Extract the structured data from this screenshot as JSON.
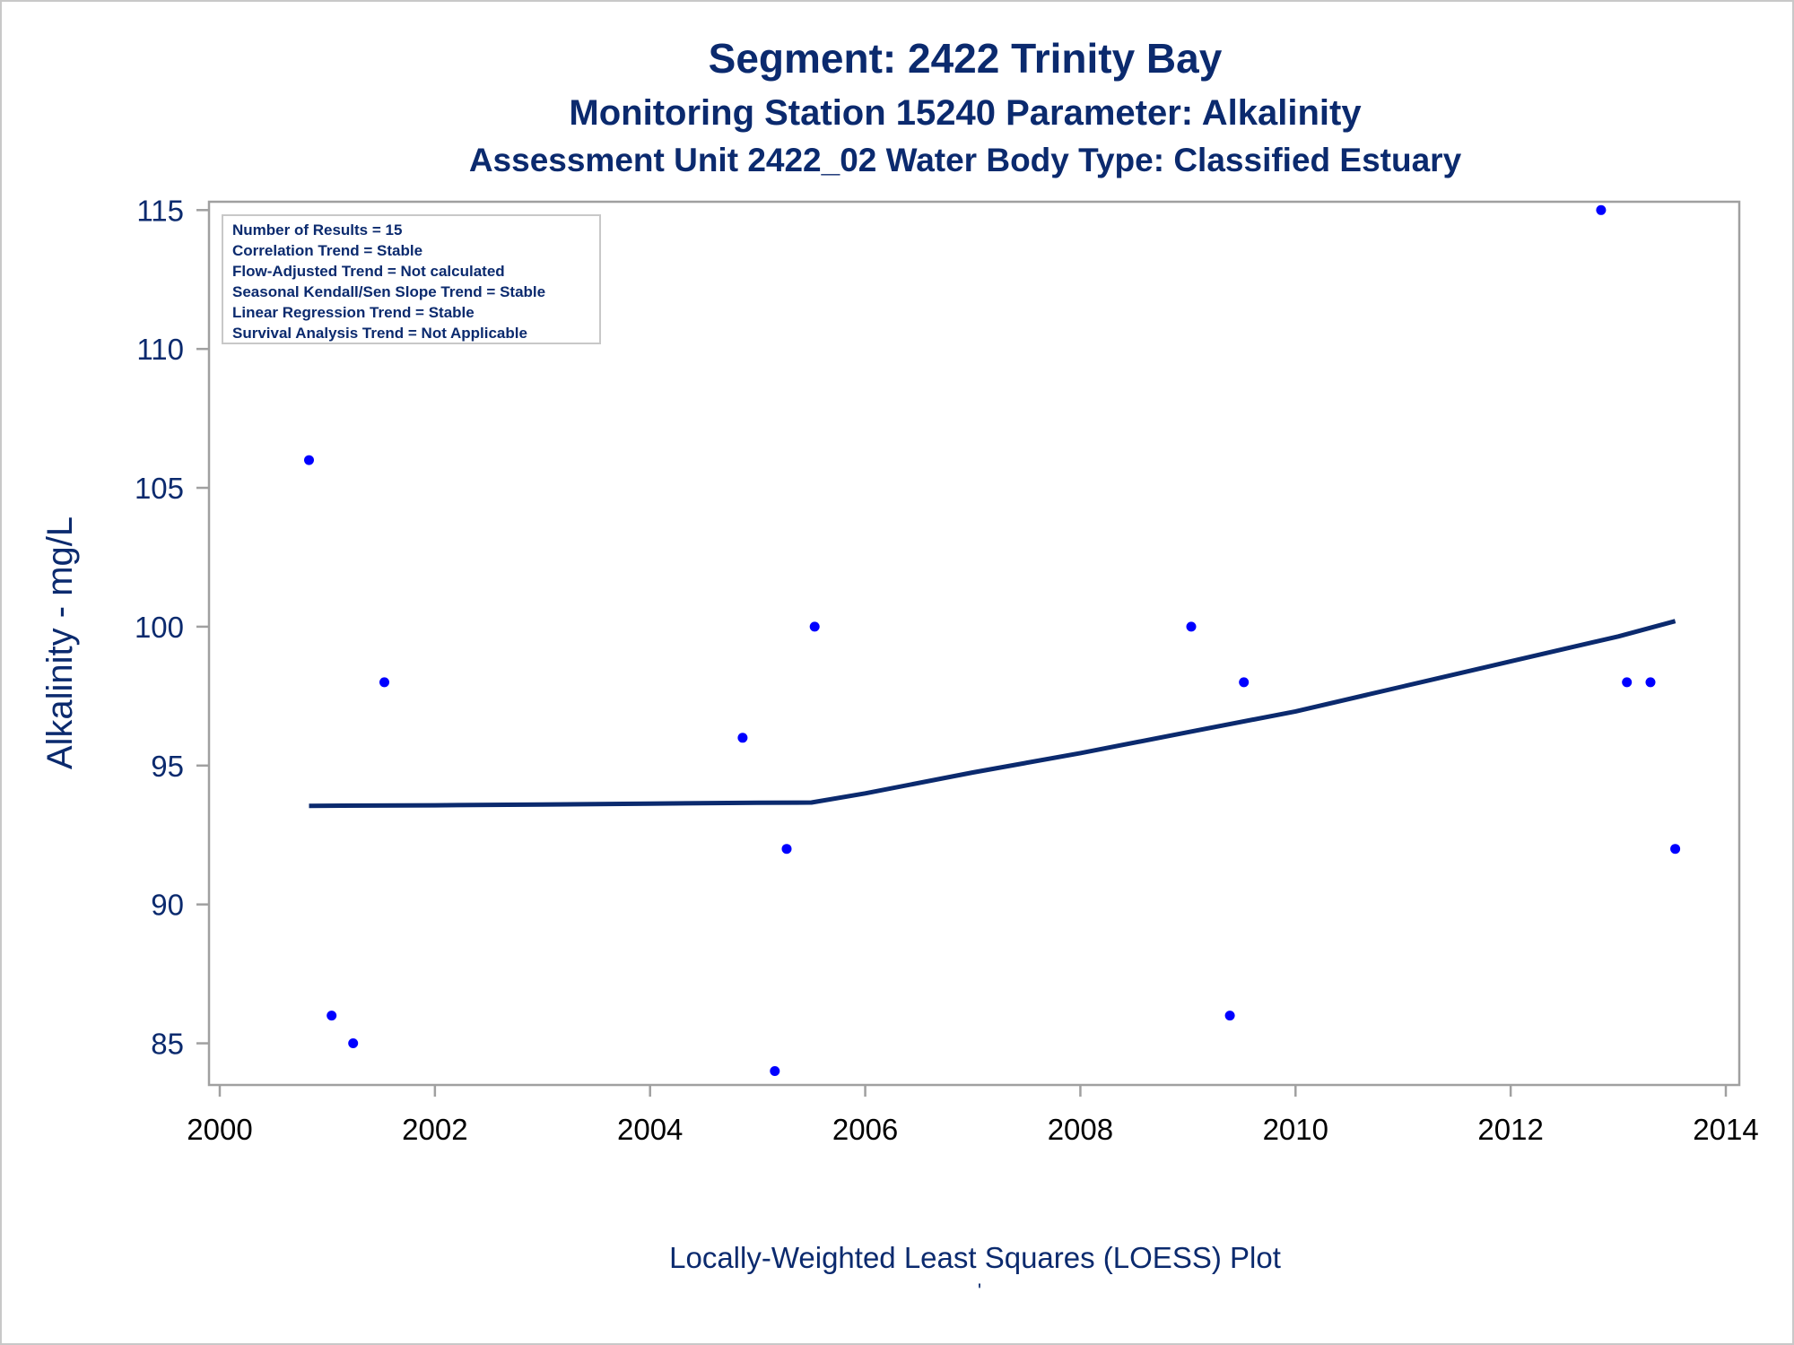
{
  "chart_data": {
    "type": "scatter",
    "title": "Segment: 2422  Trinity Bay",
    "subtitle": "Monitoring Station 15240 Parameter: Alkalinity",
    "subtitle2": "Assessment Unit 2422_02   Water Body Type: Classified Estuary",
    "xlabel": "Locally-Weighted Least Squares (LOESS) Plot",
    "footnote": "'",
    "ylabel": "Alkalinity - mg/L",
    "xlim": [
      2000,
      2014
    ],
    "ylim": [
      83.5,
      115.3
    ],
    "xticks": [
      "2000",
      "2002",
      "2004",
      "2006",
      "2008",
      "2010",
      "2012",
      "2014"
    ],
    "yticks": [
      "85",
      "90",
      "95",
      "100",
      "105",
      "110",
      "115"
    ],
    "grid": false,
    "colors": {
      "points": "#0000ff",
      "line": "#0b2a6e",
      "text": "#0b2a6e",
      "frame": "#a0a0a0"
    },
    "stats_box": {
      "lines": [
        "Number of Results = 15",
        "Correlation Trend = Stable",
        "Flow-Adjusted Trend = Not calculated",
        "Seasonal Kendall/Sen Slope Trend = Stable",
        "Linear Regression Trend = Stable",
        "Survival Analysis Trend = Not Applicable"
      ],
      "placement": "top-left"
    },
    "points": [
      {
        "x": 2000.83,
        "y": 106
      },
      {
        "x": 2001.04,
        "y": 86
      },
      {
        "x": 2001.24,
        "y": 85
      },
      {
        "x": 2001.53,
        "y": 98
      },
      {
        "x": 2004.86,
        "y": 96
      },
      {
        "x": 2005.16,
        "y": 84
      },
      {
        "x": 2005.27,
        "y": 92
      },
      {
        "x": 2005.53,
        "y": 100
      },
      {
        "x": 2009.03,
        "y": 100
      },
      {
        "x": 2009.39,
        "y": 86
      },
      {
        "x": 2009.52,
        "y": 98
      },
      {
        "x": 2012.84,
        "y": 115
      },
      {
        "x": 2013.08,
        "y": 98
      },
      {
        "x": 2013.3,
        "y": 98
      },
      {
        "x": 2013.53,
        "y": 92
      }
    ],
    "loess_line": [
      {
        "x": 2000.83,
        "y": 93.55
      },
      {
        "x": 2002.0,
        "y": 93.57
      },
      {
        "x": 2003.0,
        "y": 93.6
      },
      {
        "x": 2004.0,
        "y": 93.63
      },
      {
        "x": 2005.0,
        "y": 93.66
      },
      {
        "x": 2005.5,
        "y": 93.67
      },
      {
        "x": 2006.0,
        "y": 94.0
      },
      {
        "x": 2007.0,
        "y": 94.75
      },
      {
        "x": 2008.0,
        "y": 95.45
      },
      {
        "x": 2009.0,
        "y": 96.2
      },
      {
        "x": 2010.0,
        "y": 96.95
      },
      {
        "x": 2011.0,
        "y": 97.85
      },
      {
        "x": 2012.0,
        "y": 98.75
      },
      {
        "x": 2013.0,
        "y": 99.65
      },
      {
        "x": 2013.53,
        "y": 100.2
      }
    ]
  }
}
